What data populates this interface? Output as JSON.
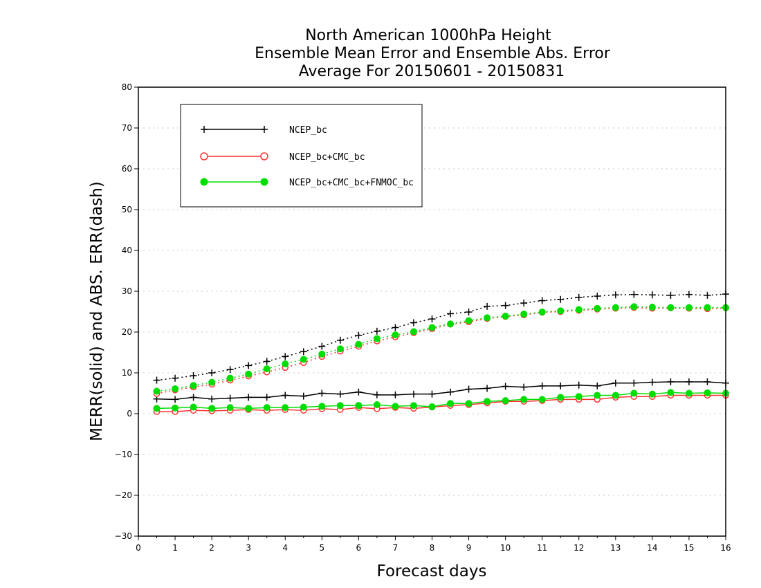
{
  "colors": {
    "background": "#ffffff",
    "grid": "#c8c8c8",
    "ncep_bc": "#000000",
    "ncep_cmc_marker": "#ff3030",
    "ncep_cmc_line": "#ff3030",
    "ncep_cmc_fnmoc": "#00dd00"
  },
  "chart_data": {
    "type": "line",
    "title": [
      "North American 1000hPa Height",
      "Ensemble Mean Error and Ensemble Abs. Error",
      "Average For 20150601 - 20150831"
    ],
    "xlabel": "Forecast days",
    "ylabel": "MERR(solid) and ABS. ERR(dash)",
    "xlim": [
      0,
      16
    ],
    "ylim": [
      -30,
      80
    ],
    "xticks": [
      "0",
      "1",
      "2",
      "3",
      "4",
      "5",
      "6",
      "7",
      "8",
      "9",
      "10",
      "11",
      "12",
      "13",
      "14",
      "15",
      "16"
    ],
    "yticks": [
      "80",
      "70",
      "60",
      "50",
      "40",
      "30",
      "20",
      "10",
      "0",
      "−10",
      "−20",
      "−30"
    ],
    "grid": "horizontal dotted",
    "legend_position": "top-left",
    "x": [
      0.5,
      1,
      1.5,
      2,
      2.5,
      3,
      3.5,
      4,
      4.5,
      5,
      5.5,
      6,
      6.5,
      7,
      7.5,
      8,
      8.5,
      9,
      9.5,
      10,
      10.5,
      11,
      11.5,
      12,
      12.5,
      13,
      13.5,
      14,
      14.5,
      15,
      15.5,
      16
    ],
    "series": [
      {
        "name": "NCEP_bc",
        "marker": "plus",
        "color_key": "ncep_bc",
        "merr": [
          3.6,
          3.5,
          4.0,
          3.6,
          3.8,
          4.0,
          4.0,
          4.5,
          4.3,
          5.0,
          4.8,
          5.3,
          4.6,
          4.6,
          4.8,
          4.8,
          5.3,
          6.0,
          6.2,
          6.7,
          6.5,
          6.8,
          6.8,
          7.0,
          6.8,
          7.5,
          7.5,
          7.7,
          7.8,
          7.8,
          7.8,
          7.5
        ],
        "abs_err": [
          8.2,
          8.7,
          9.3,
          10.0,
          10.8,
          11.8,
          12.8,
          14.0,
          15.2,
          16.5,
          18.0,
          19.2,
          20.2,
          21.1,
          22.3,
          23.2,
          24.5,
          24.9,
          26.3,
          26.5,
          27.1,
          27.7,
          28.0,
          28.5,
          28.8,
          29.1,
          29.2,
          29.1,
          29.0,
          29.2,
          29.0,
          29.3
        ]
      },
      {
        "name": "NCEP_bc+CMC_bc",
        "marker": "open-circle",
        "color_key": "ncep_cmc_line",
        "merr": [
          0.5,
          0.5,
          0.8,
          0.7,
          0.8,
          1.0,
          0.8,
          1.0,
          0.8,
          1.2,
          1.0,
          1.5,
          1.2,
          1.5,
          1.3,
          1.6,
          2.0,
          2.2,
          2.6,
          3.0,
          3.0,
          3.2,
          3.5,
          3.5,
          3.5,
          4.0,
          4.2,
          4.2,
          4.5,
          4.5,
          4.5,
          4.5
        ],
        "abs_err": [
          4.9,
          5.8,
          6.5,
          7.2,
          8.2,
          9.2,
          10.2,
          11.3,
          12.5,
          14.0,
          15.3,
          16.5,
          17.8,
          18.8,
          19.8,
          20.8,
          21.9,
          22.5,
          23.3,
          23.8,
          24.2,
          24.8,
          25.0,
          25.3,
          25.6,
          25.8,
          26.0,
          25.8,
          25.9,
          25.8,
          25.7,
          25.9
        ]
      },
      {
        "name": "NCEP_bc+CMC_bc+FNMOC_bc",
        "marker": "filled-circle",
        "color_key": "ncep_cmc_fnmoc",
        "merr": [
          1.3,
          1.4,
          1.6,
          1.3,
          1.5,
          1.3,
          1.5,
          1.5,
          1.6,
          1.8,
          2.0,
          2.0,
          2.2,
          1.8,
          2.0,
          1.7,
          2.5,
          2.5,
          3.0,
          3.2,
          3.5,
          3.5,
          4.0,
          4.2,
          4.5,
          4.5,
          5.0,
          4.8,
          5.2,
          5.0,
          5.1,
          5.0
        ],
        "abs_err": [
          5.5,
          6.1,
          6.9,
          7.7,
          8.7,
          9.7,
          11.0,
          12.2,
          13.3,
          14.6,
          15.9,
          17.0,
          18.4,
          19.3,
          20.1,
          21.1,
          22.0,
          22.8,
          23.5,
          23.9,
          24.4,
          24.9,
          25.2,
          25.5,
          25.8,
          26.0,
          26.2,
          26.1,
          26.0,
          26.0,
          26.0,
          26.0
        ]
      }
    ]
  }
}
